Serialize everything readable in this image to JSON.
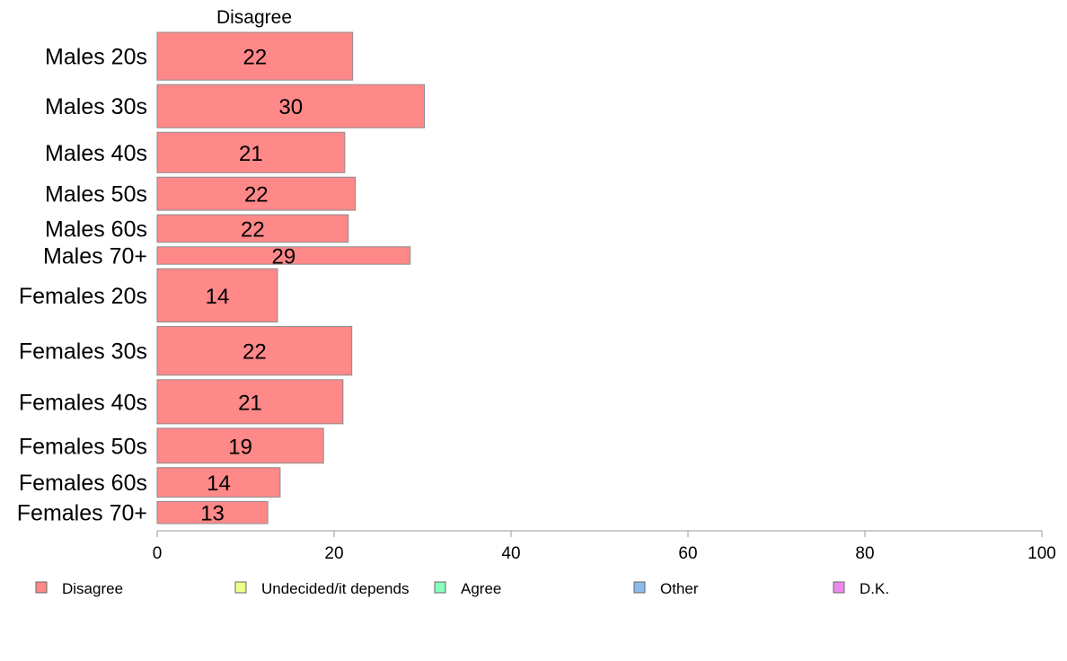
{
  "chart_data": {
    "type": "bar",
    "orientation": "horizontal",
    "column_title": "Disagree",
    "categories": [
      "Males 20s",
      "Males 30s",
      "Males 40s",
      "Males 50s",
      "Males 60s",
      "Males 70+",
      "Females 20s",
      "Females 30s",
      "Females 40s",
      "Females 50s",
      "Females 60s",
      "Females 70+"
    ],
    "series": [
      {
        "name": "Disagree",
        "values": [
          22,
          30,
          21,
          22,
          22,
          29,
          14,
          22,
          21,
          19,
          14,
          13
        ],
        "color": "#ff8888"
      }
    ],
    "bar_values_exact": [
      22.1,
      30.2,
      21.2,
      22.4,
      21.6,
      28.6,
      13.6,
      22.0,
      21.0,
      18.8,
      13.9,
      12.5
    ],
    "bar_weights": [
      52,
      47,
      44,
      36,
      30,
      19,
      58,
      53,
      48,
      38,
      32,
      24
    ],
    "xlim": [
      0,
      100
    ],
    "xticks": [
      0,
      20,
      40,
      60,
      80,
      100
    ],
    "xtick_labels": [
      "0",
      "20",
      "40",
      "60",
      "80",
      "100"
    ],
    "grid": false,
    "legend": {
      "placement": "bottom",
      "items": [
        {
          "label": "Disagree",
          "color": "#ff8888"
        },
        {
          "label": "Undecided/it depends",
          "color": "#eeff88"
        },
        {
          "label": "Agree",
          "color": "#88ffbb"
        },
        {
          "label": "Other",
          "color": "#88bbee"
        },
        {
          "label": "D.K.",
          "color": "#ee88ee"
        }
      ]
    }
  }
}
